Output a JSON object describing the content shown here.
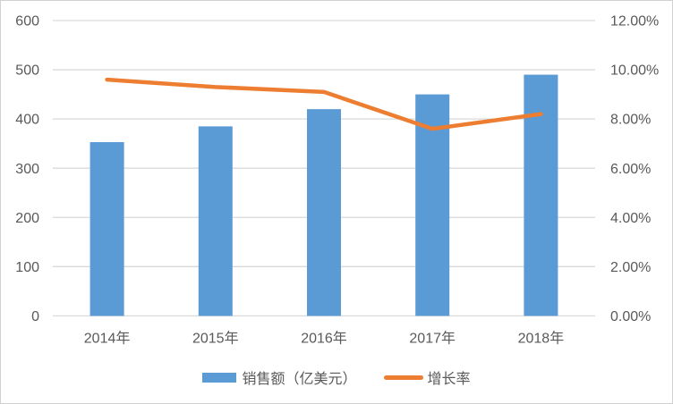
{
  "chart_data": {
    "type": "bar",
    "subtype": "bar-line-combo",
    "title": "",
    "categories": [
      "2014年",
      "2015年",
      "2016年",
      "2017年",
      "2018年"
    ],
    "series": [
      {
        "name": "销售额（亿美元）",
        "type": "bar",
        "axis": "left",
        "values": [
          353,
          385,
          420,
          450,
          490
        ]
      },
      {
        "name": "增长率",
        "type": "line",
        "axis": "right",
        "values_percent": [
          9.6,
          9.3,
          9.1,
          7.6,
          8.2
        ]
      }
    ],
    "left_axis": {
      "min": 0,
      "max": 600,
      "step": 100,
      "tick_labels": [
        "0",
        "100",
        "200",
        "300",
        "400",
        "500",
        "600"
      ]
    },
    "right_axis": {
      "min": 0,
      "max": 12,
      "step": 2,
      "tick_labels": [
        "0.00%",
        "2.00%",
        "4.00%",
        "6.00%",
        "8.00%",
        "10.00%",
        "12.00%"
      ]
    },
    "grid": "horizontal",
    "legend_position": "bottom",
    "legend": [
      "销售额（亿美元）",
      "增长率"
    ]
  },
  "colors": {
    "bar": "#5b9bd5",
    "line": "#ed7d31",
    "gridline": "#d9d9d9",
    "text": "#595959",
    "background": "#ffffff",
    "frame_border": "#d0d0d0"
  }
}
